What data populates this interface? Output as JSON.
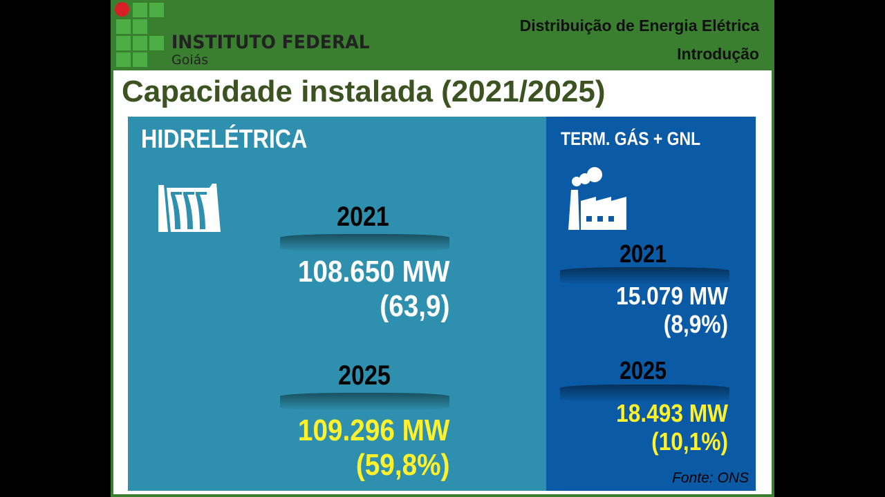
{
  "header": {
    "logo_name": "INSTITUTO FEDERAL",
    "logo_sub": "Goiás",
    "course": "Distribuição de Energia Elétrica",
    "section": "Introdução"
  },
  "title": "Capacidade instalada (2021/2025)",
  "hydro": {
    "label": "HIDRELÉTRICA",
    "icon": "dam-icon",
    "y2021": "2021",
    "v2021": "108.650 MW",
    "p2021": "(63,9)",
    "y2025": "2025",
    "v2025": "109.296 MW",
    "p2025": "(59,8%)"
  },
  "gas": {
    "label": "TERM. GÁS + GNL",
    "icon": "factory-icon",
    "y2021": "2021",
    "v2021": "15.079 MW",
    "p2021": "(8,9%)",
    "y2025": "2025",
    "v2025": "18.493 MW",
    "p2025": "(10,1%)"
  },
  "source": "Fonte: ONS",
  "colors": {
    "header": "#3a7f30",
    "hydro_panel": "#2e90ae",
    "gas_panel": "#0b5aa6",
    "highlight": "#fff22c"
  }
}
